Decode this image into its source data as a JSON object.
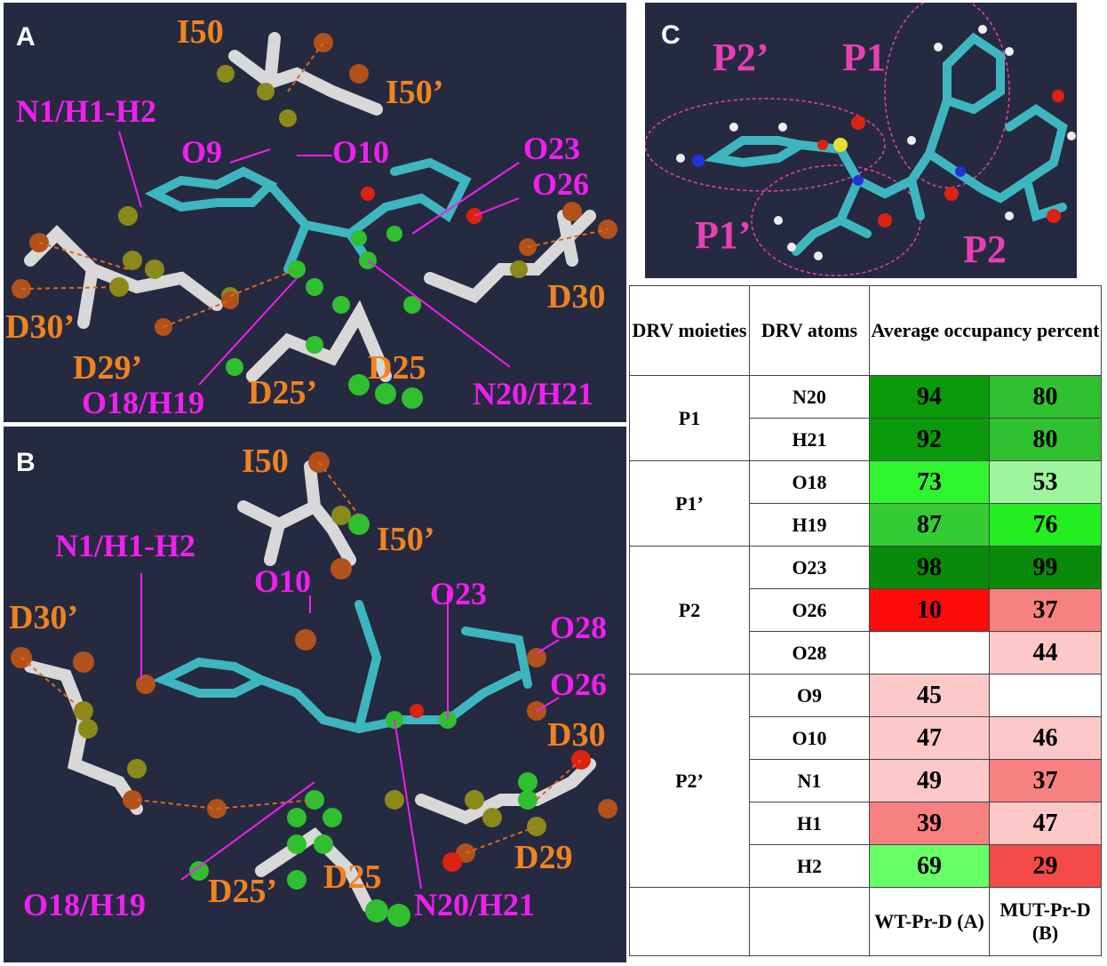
{
  "panels": {
    "a_label": "A",
    "b_label": "B",
    "c_label": "C"
  },
  "panel_a": {
    "I50": "I50",
    "I50p": "I50’",
    "N1": "N1/H1-H2",
    "O9": "O9",
    "O10": "O10",
    "O23": "O23",
    "O26": "O26",
    "D30": "D30",
    "D30p": "D30’",
    "D29p": "D29’",
    "O18": "O18/H19",
    "D25p": "D25’",
    "D25": "D25",
    "N20": "N20/H21"
  },
  "panel_b": {
    "I50": "I50",
    "I50p": "I50’",
    "N1": "N1/H1-H2",
    "O10": "O10",
    "O23": "O23",
    "O28": "O28",
    "O26": "O26",
    "D30": "D30",
    "D30p": "D30’",
    "D29": "D29",
    "O18": "O18/H19",
    "D25p": "D25’",
    "D25": "D25",
    "N20": "N20/H21"
  },
  "panel_c": {
    "P2p": "P2’",
    "P1": "P1",
    "P1p": "P1’",
    "P2": "P2"
  },
  "colors": {
    "background": "#262a40",
    "residue_label": "#f0831f",
    "atom_label": "#f01ff0",
    "moiety_label": "#e83fb5"
  },
  "table": {
    "header": {
      "col1": "DRV moieties",
      "col2": "DRV atoms",
      "col3": "Average occupancy percent"
    },
    "groups": [
      {
        "moiety": "P1",
        "rows": [
          {
            "atom": "N20",
            "wt": "94",
            "mut": "80",
            "wt_color": "#0a9a0a",
            "mut_color": "#2fc12f"
          },
          {
            "atom": "H21",
            "wt": "92",
            "mut": "80",
            "wt_color": "#0a9a0a",
            "mut_color": "#2fc12f"
          }
        ]
      },
      {
        "moiety": "P1’",
        "rows": [
          {
            "atom": "O18",
            "wt": "73",
            "mut": "53",
            "wt_color": "#2ff52f",
            "mut_color": "#9ef59e"
          },
          {
            "atom": "H19",
            "wt": "87",
            "mut": "76",
            "wt_color": "#33cc33",
            "mut_color": "#22ee22"
          }
        ]
      },
      {
        "moiety": "P2",
        "rows": [
          {
            "atom": "O23",
            "wt": "98",
            "mut": "99",
            "wt_color": "#0a8a0a",
            "mut_color": "#0a8a0a"
          },
          {
            "atom": "O26",
            "wt": "10",
            "mut": "37",
            "wt_color": "#ff0a0a",
            "mut_color": "#f78080"
          },
          {
            "atom": "O28",
            "wt": "",
            "mut": "44",
            "wt_color": "#ffffff",
            "mut_color": "#fcc8c8"
          }
        ]
      },
      {
        "moiety": "P2’",
        "rows": [
          {
            "atom": "O9",
            "wt": "45",
            "mut": "",
            "wt_color": "#fcc8c8",
            "mut_color": "#ffffff"
          },
          {
            "atom": "O10",
            "wt": "47",
            "mut": "46",
            "wt_color": "#fcc8c8",
            "mut_color": "#fcc8c8"
          },
          {
            "atom": "N1",
            "wt": "49",
            "mut": "37",
            "wt_color": "#fcc8c8",
            "mut_color": "#f78080"
          },
          {
            "atom": "H1",
            "wt": "39",
            "mut": "47",
            "wt_color": "#f78080",
            "mut_color": "#fcc8c8"
          },
          {
            "atom": "H2",
            "wt": "69",
            "mut": "29",
            "wt_color": "#66ff66",
            "mut_color": "#f54a4a"
          }
        ]
      }
    ],
    "footer": {
      "wt": "WT-Pr-D (A)",
      "mut": "MUT-Pr-D (B)"
    }
  }
}
